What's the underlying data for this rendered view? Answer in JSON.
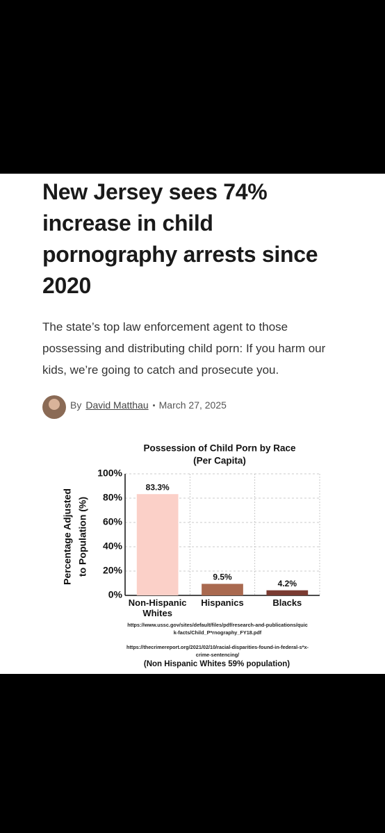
{
  "article": {
    "headline": "New Jersey sees 74% increase in child pornography arrests since 2020",
    "subtitle": "The state’s top law enforcement agent to those possessing and distributing child porn: If you harm our kids, we’re going to catch and prosecute you.",
    "byline_prefix": "By",
    "author": "David Matthau",
    "date": "March 27, 2025"
  },
  "chart_data": {
    "type": "bar",
    "title": "Possession of Child Porn by Race",
    "subtitle": "(Per Capita)",
    "y_label": [
      "Percentage Adjusted",
      "to Population (%)"
    ],
    "categories": [
      "Non-Hispanic Whites",
      "Hispanics",
      "Blacks"
    ],
    "values": [
      83.3,
      9.5,
      4.2
    ],
    "value_labels": [
      "83.3%",
      "9.5%",
      "4.2%"
    ],
    "colors": [
      "#fbd0c8",
      "#a9694f",
      "#7a3b32"
    ],
    "ylim": [
      0,
      100
    ],
    "yticks": [
      {
        "value": 0,
        "label": "0%"
      },
      {
        "value": 20,
        "label": "20%"
      },
      {
        "value": 40,
        "label": "40%"
      },
      {
        "value": 60,
        "label": "60%"
      },
      {
        "value": 80,
        "label": "80%"
      },
      {
        "value": 100,
        "label": "100%"
      }
    ],
    "grid": true,
    "sources": [
      "https://www.ussc.gov/sites/default/files/pdf/research-and-publications/quick-facts/Child_P*rnography_FY18.pdf",
      "https://thecrimereport.org/2021/02/10/racial-disparities-found-in-federal-s*x-crime-sentencing/"
    ],
    "note": "(Non Hispanic Whites 59% population)"
  }
}
